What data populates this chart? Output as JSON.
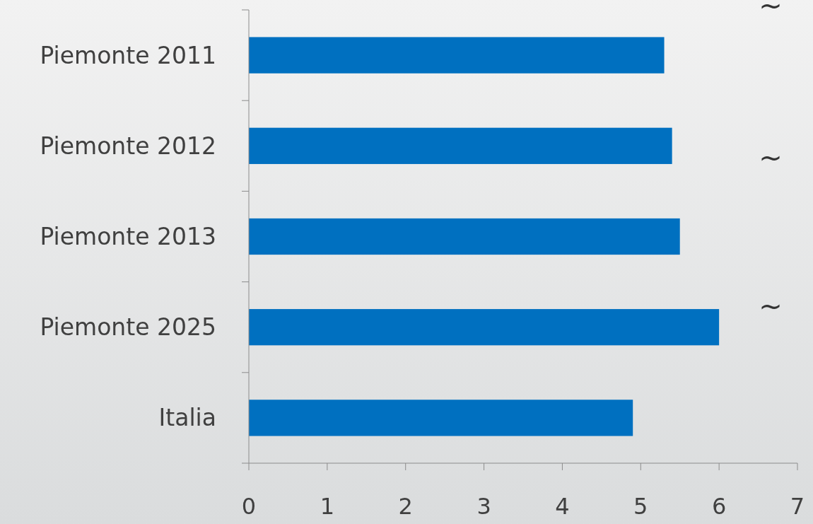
{
  "chart_data": {
    "type": "bar",
    "orientation": "horizontal",
    "categories": [
      "Piemonte 2011",
      "Piemonte 2012",
      "Piemonte 2013",
      "Piemonte 2025",
      "Italia"
    ],
    "values": [
      5.3,
      5.4,
      5.5,
      6.0,
      4.9
    ],
    "color": "#0070c0",
    "xlim": [
      0,
      7
    ],
    "xticks": [
      0,
      1,
      2,
      3,
      4,
      5,
      6,
      7
    ],
    "grid": false,
    "annotations": [
      "~",
      "~",
      "~"
    ]
  }
}
